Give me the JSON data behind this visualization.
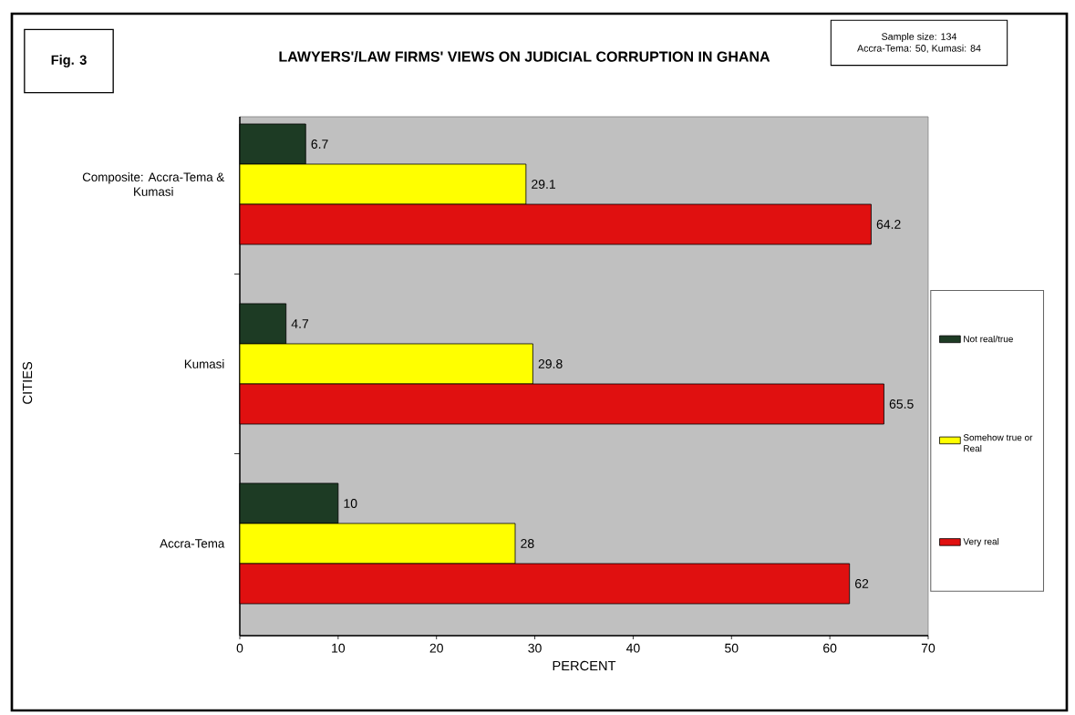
{
  "chart_data": {
    "type": "bar",
    "orientation": "horizontal",
    "title": "LAWYERS'/LAW FIRMS' VIEWS ON JUDICIAL CORRUPTION IN GHANA",
    "xlabel": "PERCENT",
    "ylabel": "CITIES",
    "categories": [
      "Composite: Accra-Tema & Kumasi",
      "Kumasi",
      "Accra-Tema"
    ],
    "series": [
      {
        "name": "Not real/true",
        "color": "#1d3b24",
        "values": [
          6.7,
          4.7,
          10
        ]
      },
      {
        "name": "Somehow true or Real",
        "color": "#ffff00",
        "values": [
          29.1,
          29.8,
          28
        ]
      },
      {
        "name": "Very real",
        "color": "#e01010",
        "values": [
          64.2,
          65.5,
          62
        ]
      }
    ],
    "xlim": [
      0,
      70
    ],
    "xticks": [
      0,
      10,
      20,
      30,
      40,
      50,
      60,
      70
    ],
    "legend": "right",
    "data_labels": true,
    "annotations": [
      "Fig. 3",
      "Sample size: 134",
      "Accra-Tema: 50, Kumasi: 84"
    ]
  }
}
